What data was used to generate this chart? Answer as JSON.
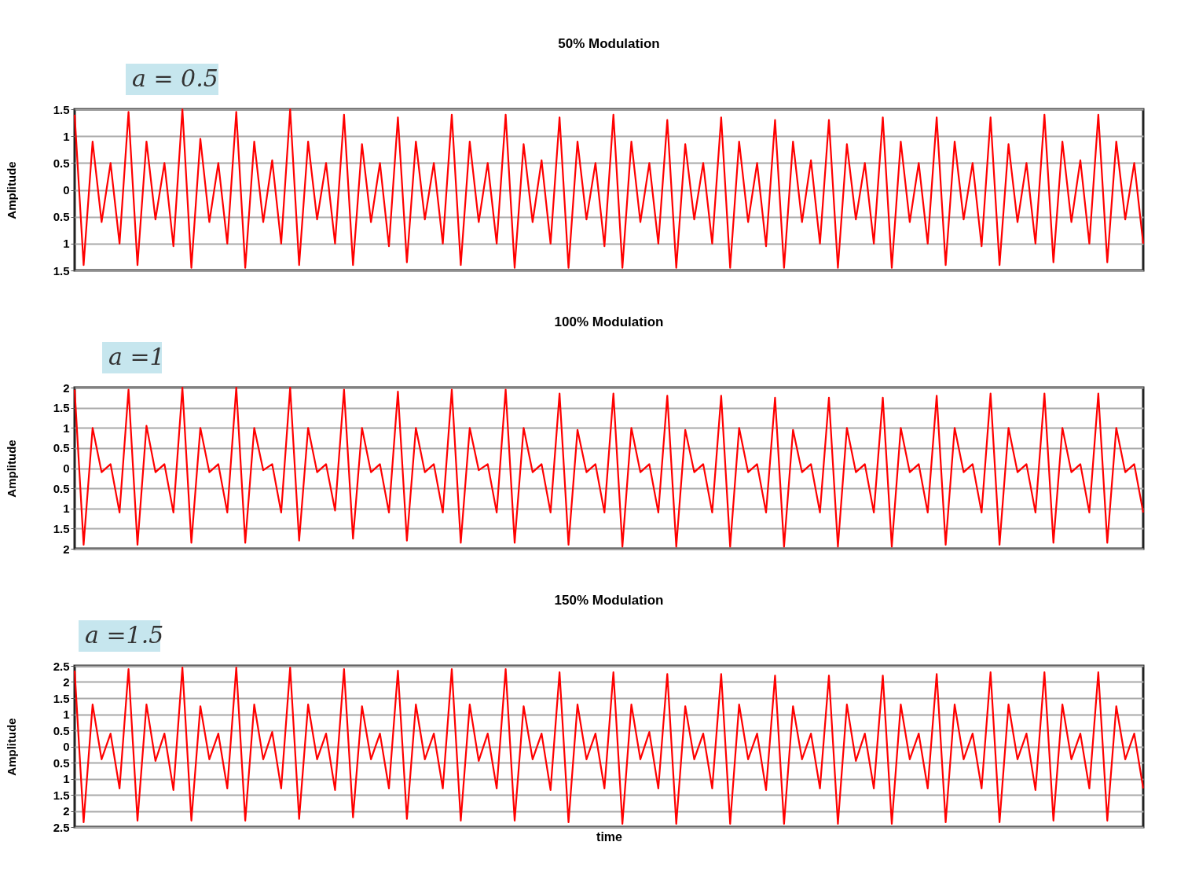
{
  "chart_data": [
    {
      "type": "line",
      "title": "50% Modulation",
      "ylabel": "Amplitude",
      "annotations": [
        "a = 0.5"
      ],
      "grid": "y",
      "tick_labels": "y",
      "categories": [
        null,
        null,
        null,
        null,
        null,
        null,
        null,
        null,
        null,
        null,
        null,
        null,
        null,
        null,
        null,
        null,
        null,
        null,
        null,
        null,
        null,
        null,
        null,
        null,
        null,
        null,
        null,
        null,
        null,
        null,
        null,
        null,
        null,
        null,
        null,
        null,
        null,
        null,
        null,
        null,
        null,
        null,
        null,
        null,
        null,
        null,
        null,
        null,
        null,
        null,
        null,
        null,
        null,
        null,
        null,
        null,
        null,
        null,
        null,
        null,
        null,
        null,
        null,
        null,
        null,
        null,
        null,
        null,
        null,
        null,
        null,
        null,
        null,
        null,
        null,
        null,
        null,
        null,
        null,
        null,
        null,
        null,
        null,
        null,
        null,
        null,
        null,
        null,
        null,
        null,
        null,
        null,
        null,
        null,
        null,
        null,
        null,
        null,
        null,
        null,
        null,
        null,
        null,
        null,
        null,
        null,
        null,
        null,
        null,
        null,
        null,
        null,
        null,
        null,
        null,
        null,
        null,
        null,
        null,
        null
      ],
      "series": [
        {
          "color": "#ff0000",
          "values": [
            1.4,
            -1.4,
            0.9,
            -0.6,
            0.5,
            -1.0,
            1.45,
            -1.4,
            0.9,
            -0.55,
            0.5,
            -1.05,
            1.5,
            -1.45,
            0.95,
            -0.6,
            0.5,
            -1.0,
            1.45,
            -1.45,
            0.9,
            -0.6,
            0.55,
            -1.0,
            1.5,
            -1.4,
            0.9,
            -0.55,
            0.5,
            -1.0,
            1.4,
            -1.4,
            0.85,
            -0.6,
            0.5,
            -1.05,
            1.35,
            -1.35,
            0.9,
            -0.55,
            0.5,
            -1.0,
            1.4,
            -1.4,
            0.9,
            -0.6,
            0.5,
            -1.0,
            1.4,
            -1.45,
            0.85,
            -0.6,
            0.55,
            -1.0,
            1.35,
            -1.45,
            0.9,
            -0.55,
            0.5,
            -1.05,
            1.4,
            -1.45,
            0.9,
            -0.6,
            0.5,
            -1.0,
            1.3,
            -1.45,
            0.85,
            -0.55,
            0.5,
            -1.0,
            1.35,
            -1.45,
            0.9,
            -0.6,
            0.5,
            -1.05,
            1.3,
            -1.45,
            0.9,
            -0.6,
            0.55,
            -1.0,
            1.3,
            -1.45,
            0.85,
            -0.55,
            0.5,
            -1.0,
            1.35,
            -1.45,
            0.9,
            -0.6,
            0.5,
            -1.0,
            1.35,
            -1.4,
            0.9,
            -0.55,
            0.5,
            -1.05,
            1.35,
            -1.4,
            0.85,
            -0.6,
            0.5,
            -1.0,
            1.4,
            -1.35,
            0.9,
            -0.6,
            0.55,
            -1.0,
            1.4,
            -1.35,
            0.9,
            -0.55,
            0.5,
            -1.0
          ]
        }
      ],
      "ylim": [
        -1.5,
        1.5
      ],
      "yticks": [
        {
          "value": -1.5,
          "label": "1.5"
        },
        {
          "value": -1,
          "label": "1"
        },
        {
          "value": -0.5,
          "label": "0.5"
        },
        0,
        0.5,
        1,
        1.5
      ]
    },
    {
      "type": "line",
      "title": "100% Modulation",
      "ylabel": "Amplitude",
      "annotations": [
        "a =1"
      ],
      "grid": "y",
      "tick_labels": "y",
      "categories": [
        null,
        null,
        null,
        null,
        null,
        null,
        null,
        null,
        null,
        null,
        null,
        null,
        null,
        null,
        null,
        null,
        null,
        null,
        null,
        null,
        null,
        null,
        null,
        null,
        null,
        null,
        null,
        null,
        null,
        null,
        null,
        null,
        null,
        null,
        null,
        null,
        null,
        null,
        null,
        null,
        null,
        null,
        null,
        null,
        null,
        null,
        null,
        null,
        null,
        null,
        null,
        null,
        null,
        null,
        null,
        null,
        null,
        null,
        null,
        null,
        null,
        null,
        null,
        null,
        null,
        null,
        null,
        null,
        null,
        null,
        null,
        null,
        null,
        null,
        null,
        null,
        null,
        null,
        null,
        null,
        null,
        null,
        null,
        null,
        null,
        null,
        null,
        null,
        null,
        null,
        null,
        null,
        null,
        null,
        null,
        null,
        null,
        null,
        null,
        null,
        null,
        null,
        null,
        null,
        null,
        null,
        null,
        null,
        null,
        null,
        null,
        null,
        null,
        null,
        null,
        null,
        null,
        null,
        null,
        null
      ],
      "series": [
        {
          "color": "#ff0000",
          "values": [
            1.95,
            -1.9,
            1.0,
            -0.1,
            0.1,
            -1.1,
            1.95,
            -1.9,
            1.05,
            -0.1,
            0.1,
            -1.1,
            2.0,
            -1.85,
            1.0,
            -0.1,
            0.1,
            -1.1,
            2.0,
            -1.85,
            1.0,
            -0.05,
            0.1,
            -1.1,
            2.0,
            -1.8,
            1.0,
            -0.1,
            0.1,
            -1.05,
            1.95,
            -1.75,
            1.0,
            -0.1,
            0.1,
            -1.1,
            1.9,
            -1.8,
            1.0,
            -0.1,
            0.1,
            -1.1,
            1.95,
            -1.85,
            1.0,
            -0.05,
            0.1,
            -1.1,
            1.95,
            -1.85,
            1.0,
            -0.1,
            0.1,
            -1.1,
            1.85,
            -1.9,
            0.95,
            -0.1,
            0.1,
            -1.1,
            1.85,
            -1.95,
            1.0,
            -0.1,
            0.1,
            -1.1,
            1.8,
            -1.95,
            0.95,
            -0.1,
            0.1,
            -1.1,
            1.8,
            -1.95,
            1.0,
            -0.1,
            0.1,
            -1.1,
            1.75,
            -1.95,
            0.95,
            -0.1,
            0.1,
            -1.1,
            1.75,
            -1.95,
            1.0,
            -0.1,
            0.1,
            -1.1,
            1.75,
            -1.95,
            1.0,
            -0.1,
            0.1,
            -1.1,
            1.8,
            -1.9,
            1.0,
            -0.1,
            0.1,
            -1.1,
            1.85,
            -1.9,
            1.0,
            -0.1,
            0.1,
            -1.1,
            1.85,
            -1.85,
            1.0,
            -0.1,
            0.1,
            -1.1,
            1.85,
            -1.85,
            1.0,
            -0.1,
            0.1,
            -1.1
          ]
        }
      ],
      "ylim": [
        -2,
        2
      ],
      "yticks": [
        {
          "value": -2,
          "label": "2"
        },
        {
          "value": -1.5,
          "label": "1.5"
        },
        {
          "value": -1,
          "label": "1"
        },
        {
          "value": -0.5,
          "label": "0.5"
        },
        0,
        0.5,
        1,
        1.5,
        2
      ]
    },
    {
      "type": "line",
      "title": "150% Modulation",
      "ylabel": "Amplitude",
      "xlabel": "time",
      "annotations": [
        "a =1.5"
      ],
      "grid": "y",
      "tick_labels": "y",
      "categories": [
        null,
        null,
        null,
        null,
        null,
        null,
        null,
        null,
        null,
        null,
        null,
        null,
        null,
        null,
        null,
        null,
        null,
        null,
        null,
        null,
        null,
        null,
        null,
        null,
        null,
        null,
        null,
        null,
        null,
        null,
        null,
        null,
        null,
        null,
        null,
        null,
        null,
        null,
        null,
        null,
        null,
        null,
        null,
        null,
        null,
        null,
        null,
        null,
        null,
        null,
        null,
        null,
        null,
        null,
        null,
        null,
        null,
        null,
        null,
        null,
        null,
        null,
        null,
        null,
        null,
        null,
        null,
        null,
        null,
        null,
        null,
        null,
        null,
        null,
        null,
        null,
        null,
        null,
        null,
        null,
        null,
        null,
        null,
        null,
        null,
        null,
        null,
        null,
        null,
        null,
        null,
        null,
        null,
        null,
        null,
        null,
        null,
        null,
        null,
        null,
        null,
        null,
        null,
        null,
        null,
        null,
        null,
        null,
        null,
        null,
        null,
        null,
        null,
        null,
        null,
        null,
        null,
        null,
        null,
        null
      ],
      "series": [
        {
          "color": "#ff0000",
          "values": [
            2.35,
            -2.35,
            1.3,
            -0.4,
            0.4,
            -1.3,
            2.4,
            -2.3,
            1.3,
            -0.45,
            0.4,
            -1.35,
            2.45,
            -2.3,
            1.25,
            -0.4,
            0.4,
            -1.3,
            2.45,
            -2.3,
            1.3,
            -0.4,
            0.45,
            -1.3,
            2.45,
            -2.25,
            1.3,
            -0.4,
            0.4,
            -1.35,
            2.4,
            -2.2,
            1.25,
            -0.4,
            0.4,
            -1.3,
            2.35,
            -2.25,
            1.3,
            -0.4,
            0.4,
            -1.3,
            2.4,
            -2.3,
            1.3,
            -0.45,
            0.4,
            -1.3,
            2.4,
            -2.3,
            1.25,
            -0.4,
            0.4,
            -1.35,
            2.3,
            -2.35,
            1.3,
            -0.4,
            0.4,
            -1.3,
            2.3,
            -2.4,
            1.3,
            -0.4,
            0.45,
            -1.3,
            2.25,
            -2.4,
            1.25,
            -0.4,
            0.4,
            -1.3,
            2.25,
            -2.4,
            1.3,
            -0.4,
            0.4,
            -1.35,
            2.2,
            -2.4,
            1.25,
            -0.4,
            0.4,
            -1.3,
            2.2,
            -2.4,
            1.3,
            -0.45,
            0.4,
            -1.3,
            2.2,
            -2.4,
            1.3,
            -0.4,
            0.4,
            -1.3,
            2.25,
            -2.35,
            1.3,
            -0.4,
            0.4,
            -1.3,
            2.3,
            -2.35,
            1.3,
            -0.4,
            0.4,
            -1.35,
            2.3,
            -2.3,
            1.3,
            -0.4,
            0.4,
            -1.3,
            2.3,
            -2.3,
            1.25,
            -0.4,
            0.4,
            -1.3
          ]
        }
      ],
      "ylim": [
        -2.5,
        2.5
      ],
      "yticks": [
        {
          "value": -2.5,
          "label": "2.5"
        },
        {
          "value": -2,
          "label": "2"
        },
        {
          "value": -1.5,
          "label": "1.5"
        },
        {
          "value": -1,
          "label": "1"
        },
        {
          "value": -0.5,
          "label": "0.5"
        },
        0,
        0.5,
        1,
        1.5,
        2,
        2.5
      ]
    }
  ]
}
